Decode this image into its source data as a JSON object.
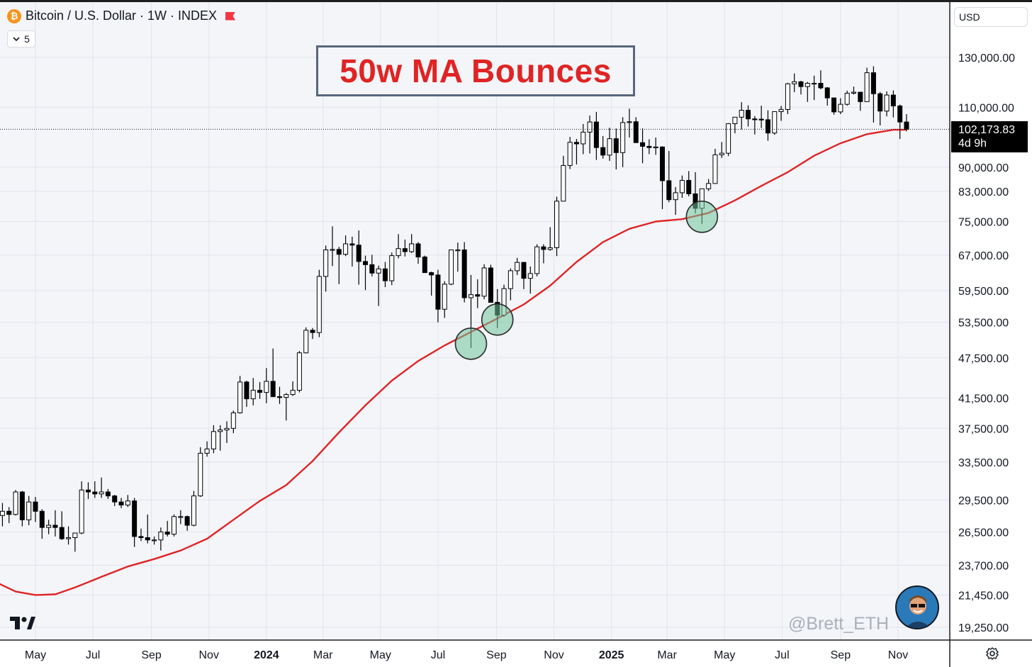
{
  "header": {
    "symbol_title": "Bitcoin / U.S. Dollar · 1W · INDEX",
    "coin_glyph": "₿",
    "collapse_count": "5",
    "currency": "USD"
  },
  "annotation": {
    "title": "50w MA Bounces"
  },
  "last_price": {
    "value": "102,173.83",
    "countdown": "4d 9h"
  },
  "watermark": "@Brett_ETH",
  "colors": {
    "ma": "#e02424",
    "candle_up": "#ffffff",
    "candle_down": "#000000",
    "circle_fill": "#6fc29a",
    "title": "#e02424",
    "background": "#f4f5f9"
  },
  "chart_data": {
    "type": "candlestick",
    "timeframe": "1W",
    "y_scale": "log",
    "y_ticks": [
      130000,
      110000,
      90000,
      83000,
      75000,
      67000,
      59500,
      53500,
      47500,
      41500,
      37500,
      33500,
      29500,
      26500,
      23700,
      21450,
      19250
    ],
    "y_tick_labels": [
      "130,000.00",
      "110,000.00",
      "90,000.00",
      "83,000.00",
      "75,000.00",
      "67,000.00",
      "59,500.00",
      "53,500.00",
      "47,500.00",
      "41,500.00",
      "37,500.00",
      "33,500.00",
      "29,500.00",
      "26,500.00",
      "23,700.00",
      "21,450.00",
      "19,250.00"
    ],
    "x_labels": [
      {
        "label": "May",
        "date": "2023-05-01",
        "bold": false
      },
      {
        "label": "Jul",
        "date": "2023-07-01",
        "bold": false
      },
      {
        "label": "Sep",
        "date": "2023-09-01",
        "bold": false
      },
      {
        "label": "Nov",
        "date": "2023-11-01",
        "bold": false
      },
      {
        "label": "2024",
        "date": "2024-01-01",
        "bold": true
      },
      {
        "label": "Mar",
        "date": "2024-03-01",
        "bold": false
      },
      {
        "label": "May",
        "date": "2024-05-01",
        "bold": false
      },
      {
        "label": "Jul",
        "date": "2024-07-01",
        "bold": false
      },
      {
        "label": "Sep",
        "date": "2024-09-01",
        "bold": false
      },
      {
        "label": "Nov",
        "date": "2024-11-01",
        "bold": false
      },
      {
        "label": "2025",
        "date": "2025-01-01",
        "bold": true
      },
      {
        "label": "Mar",
        "date": "2025-03-01",
        "bold": false
      },
      {
        "label": "May",
        "date": "2025-05-01",
        "bold": false
      },
      {
        "label": "Jul",
        "date": "2025-07-01",
        "bold": false
      },
      {
        "label": "Sep",
        "date": "2025-09-01",
        "bold": false
      },
      {
        "label": "Nov",
        "date": "2025-11-01",
        "bold": false
      }
    ],
    "ma_50w": [
      [
        "2023-03-20",
        22400
      ],
      [
        "2023-04-10",
        21700
      ],
      [
        "2023-05-01",
        21450
      ],
      [
        "2023-05-22",
        21500
      ],
      [
        "2023-06-12",
        22000
      ],
      [
        "2023-07-10",
        22800
      ],
      [
        "2023-08-07",
        23600
      ],
      [
        "2023-09-04",
        24200
      ],
      [
        "2023-10-02",
        24900
      ],
      [
        "2023-10-30",
        25900
      ],
      [
        "2023-11-27",
        27600
      ],
      [
        "2023-12-25",
        29400
      ],
      [
        "2024-01-22",
        31000
      ],
      [
        "2024-02-19",
        33600
      ],
      [
        "2024-03-18",
        37000
      ],
      [
        "2024-04-15",
        40500
      ],
      [
        "2024-05-13",
        44000
      ],
      [
        "2024-06-10",
        47000
      ],
      [
        "2024-07-08",
        49500
      ],
      [
        "2024-08-05",
        51800
      ],
      [
        "2024-09-02",
        54200
      ],
      [
        "2024-09-30",
        56800
      ],
      [
        "2024-10-28",
        60500
      ],
      [
        "2024-11-25",
        65500
      ],
      [
        "2024-12-23",
        70000
      ],
      [
        "2025-01-20",
        73200
      ],
      [
        "2025-02-17",
        75000
      ],
      [
        "2025-03-17",
        75600
      ],
      [
        "2025-04-14",
        77200
      ],
      [
        "2025-05-12",
        80500
      ],
      [
        "2025-06-09",
        84500
      ],
      [
        "2025-07-07",
        88500
      ],
      [
        "2025-08-04",
        93500
      ],
      [
        "2025-09-01",
        97500
      ],
      [
        "2025-09-29",
        100500
      ],
      [
        "2025-10-27",
        102000
      ],
      [
        "2025-11-10",
        102000
      ]
    ],
    "highlight_points": [
      {
        "date": "2024-08-05",
        "value": 49800
      },
      {
        "date": "2024-09-02",
        "value": 54000
      },
      {
        "date": "2025-04-07",
        "value": 76200
      }
    ],
    "candles": [
      [
        "2023-03-20",
        27500,
        28800,
        26800,
        28000
      ],
      [
        "2023-03-27",
        28000,
        29200,
        27000,
        28400
      ],
      [
        "2023-04-03",
        28400,
        28800,
        27300,
        28100
      ],
      [
        "2023-04-10",
        28100,
        30500,
        28000,
        30300
      ],
      [
        "2023-04-17",
        30300,
        30400,
        27000,
        27600
      ],
      [
        "2023-04-24",
        27600,
        29900,
        27100,
        29300
      ],
      [
        "2023-05-01",
        29300,
        29800,
        27400,
        28400
      ],
      [
        "2023-05-08",
        28400,
        28600,
        25900,
        26900
      ],
      [
        "2023-05-15",
        26900,
        27600,
        26300,
        27100
      ],
      [
        "2023-05-22",
        27100,
        28500,
        26100,
        26900
      ],
      [
        "2023-05-29",
        26900,
        28400,
        25800,
        25900
      ],
      [
        "2023-06-05",
        25900,
        27000,
        25400,
        26000
      ],
      [
        "2023-06-12",
        26000,
        26300,
        24800,
        26400
      ],
      [
        "2023-06-19",
        26400,
        31400,
        26300,
        30500
      ],
      [
        "2023-06-26",
        30500,
        31300,
        29600,
        30300
      ],
      [
        "2023-07-03",
        30300,
        31400,
        29700,
        30100
      ],
      [
        "2023-07-10",
        30100,
        31800,
        29700,
        30300
      ],
      [
        "2023-07-17",
        30300,
        30600,
        29600,
        29900
      ],
      [
        "2023-07-24",
        29900,
        30000,
        28900,
        29300
      ],
      [
        "2023-07-31",
        29300,
        29700,
        28700,
        29000
      ],
      [
        "2023-08-07",
        29000,
        30000,
        28800,
        29400
      ],
      [
        "2023-08-14",
        29400,
        29700,
        25200,
        26100
      ],
      [
        "2023-08-21",
        26100,
        26800,
        25700,
        26000
      ],
      [
        "2023-08-28",
        26000,
        28100,
        25500,
        25800
      ],
      [
        "2023-09-04",
        25800,
        26100,
        25400,
        25800
      ],
      [
        "2023-09-11",
        25800,
        26900,
        24900,
        26500
      ],
      [
        "2023-09-18",
        26500,
        27500,
        26100,
        26300
      ],
      [
        "2023-09-25",
        26300,
        28100,
        26100,
        27900
      ],
      [
        "2023-10-02",
        27900,
        28500,
        27200,
        27900
      ],
      [
        "2023-10-09",
        27900,
        28000,
        26600,
        27100
      ],
      [
        "2023-10-16",
        27100,
        30400,
        27000,
        29900
      ],
      [
        "2023-10-23",
        29900,
        35200,
        29800,
        34500
      ],
      [
        "2023-10-30",
        34500,
        35900,
        34100,
        35000
      ],
      [
        "2023-11-06",
        35000,
        37900,
        34500,
        37100
      ],
      [
        "2023-11-13",
        37100,
        37900,
        34800,
        37300
      ],
      [
        "2023-11-20",
        37300,
        38400,
        35700,
        37500
      ],
      [
        "2023-11-27",
        37500,
        39800,
        36900,
        39500
      ],
      [
        "2023-12-04",
        39500,
        44700,
        39400,
        43800
      ],
      [
        "2023-12-11",
        43800,
        44000,
        40300,
        41400
      ],
      [
        "2023-12-18",
        41400,
        44400,
        40500,
        42600
      ],
      [
        "2023-12-25",
        42600,
        43800,
        41400,
        42300
      ],
      [
        "2024-01-01",
        42300,
        45900,
        40800,
        43900
      ],
      [
        "2024-01-08",
        43900,
        49000,
        41800,
        41700
      ],
      [
        "2024-01-15",
        41700,
        43100,
        40700,
        41600
      ],
      [
        "2024-01-22",
        41600,
        42200,
        38500,
        42000
      ],
      [
        "2024-01-29",
        42000,
        43900,
        41800,
        42600
      ],
      [
        "2024-02-05",
        42600,
        48600,
        42300,
        48300
      ],
      [
        "2024-02-12",
        48300,
        52600,
        48200,
        52100
      ],
      [
        "2024-02-19",
        52100,
        52500,
        50600,
        51700
      ],
      [
        "2024-02-26",
        51700,
        63800,
        50900,
        62400
      ],
      [
        "2024-03-04",
        62400,
        69200,
        59300,
        68200
      ],
      [
        "2024-03-11",
        68200,
        73800,
        64600,
        68300
      ],
      [
        "2024-03-18",
        68300,
        68900,
        60800,
        67200
      ],
      [
        "2024-03-25",
        67200,
        71600,
        66800,
        69600
      ],
      [
        "2024-04-01",
        69600,
        71300,
        64500,
        69300
      ],
      [
        "2024-04-08",
        69300,
        72800,
        60700,
        65600
      ],
      [
        "2024-04-15",
        65600,
        66900,
        59600,
        64900
      ],
      [
        "2024-04-22",
        64900,
        67100,
        62400,
        63100
      ],
      [
        "2024-04-29",
        63100,
        64700,
        56500,
        64000
      ],
      [
        "2024-05-06",
        64000,
        65500,
        60200,
        61500
      ],
      [
        "2024-05-13",
        61500,
        67600,
        60600,
        66900
      ],
      [
        "2024-05-20",
        66900,
        71900,
        66300,
        68500
      ],
      [
        "2024-05-27",
        68500,
        70600,
        66700,
        67800
      ],
      [
        "2024-06-03",
        67800,
        71900,
        67500,
        69600
      ],
      [
        "2024-06-10",
        69600,
        70000,
        65100,
        66600
      ],
      [
        "2024-06-17",
        66600,
        66900,
        63400,
        63200
      ],
      [
        "2024-06-24",
        63200,
        63400,
        58500,
        62700
      ],
      [
        "2024-07-01",
        62700,
        63800,
        53500,
        55900
      ],
      [
        "2024-07-08",
        55900,
        61400,
        54300,
        60800
      ],
      [
        "2024-07-15",
        60800,
        68300,
        60600,
        68200
      ],
      [
        "2024-07-22",
        68200,
        69900,
        63400,
        68200
      ],
      [
        "2024-07-29",
        68200,
        70000,
        57200,
        58100
      ],
      [
        "2024-08-05",
        58100,
        62700,
        49100,
        58700
      ],
      [
        "2024-08-12",
        58700,
        61800,
        56100,
        58400
      ],
      [
        "2024-08-19",
        58400,
        65000,
        57800,
        64200
      ],
      [
        "2024-08-26",
        64200,
        64900,
        57200,
        57200
      ],
      [
        "2024-09-02",
        57200,
        59800,
        52500,
        54800
      ],
      [
        "2024-09-09",
        54800,
        60700,
        54500,
        59900
      ],
      [
        "2024-09-16",
        59900,
        64100,
        57600,
        63600
      ],
      [
        "2024-09-23",
        63600,
        66400,
        62700,
        65400
      ],
      [
        "2024-09-30",
        65400,
        65500,
        59800,
        62000
      ],
      [
        "2024-10-07",
        62000,
        64500,
        58900,
        63000
      ],
      [
        "2024-10-14",
        63000,
        69500,
        62400,
        68900
      ],
      [
        "2024-10-21",
        68900,
        69500,
        65200,
        68300
      ],
      [
        "2024-10-28",
        68300,
        73600,
        68000,
        68700
      ],
      [
        "2024-11-04",
        68700,
        81500,
        66800,
        80300
      ],
      [
        "2024-11-11",
        80300,
        93500,
        80200,
        90500
      ],
      [
        "2024-11-18",
        90500,
        99600,
        89400,
        97800
      ],
      [
        "2024-11-25",
        97800,
        98900,
        90800,
        97300
      ],
      [
        "2024-12-02",
        97300,
        104000,
        94000,
        101200
      ],
      [
        "2024-12-09",
        101200,
        107000,
        94200,
        104700
      ],
      [
        "2024-12-16",
        104700,
        108300,
        92200,
        96100
      ],
      [
        "2024-12-23",
        96100,
        99900,
        92600,
        93700
      ],
      [
        "2024-12-30",
        93700,
        102700,
        91900,
        99000
      ],
      [
        "2025-01-06",
        99000,
        102400,
        89300,
        94500
      ],
      [
        "2025-01-13",
        94500,
        106400,
        90000,
        104500
      ],
      [
        "2025-01-20",
        104500,
        109500,
        99400,
        104800
      ],
      [
        "2025-01-27",
        104800,
        106400,
        97800,
        97700
      ],
      [
        "2025-02-03",
        97700,
        102500,
        91200,
        96500
      ],
      [
        "2025-02-10",
        96500,
        98800,
        94000,
        96100
      ],
      [
        "2025-02-17",
        96100,
        99400,
        93800,
        96300
      ],
      [
        "2025-02-24",
        96300,
        96500,
        78200,
        86000
      ],
      [
        "2025-03-03",
        86000,
        95000,
        80000,
        80700
      ],
      [
        "2025-03-10",
        80700,
        84200,
        76700,
        82600
      ],
      [
        "2025-03-17",
        82600,
        87500,
        81200,
        86100
      ],
      [
        "2025-03-24",
        86100,
        88800,
        81600,
        82300
      ],
      [
        "2025-03-31",
        82300,
        88500,
        77100,
        78400
      ],
      [
        "2025-04-07",
        78400,
        83600,
        74400,
        83700
      ],
      [
        "2025-04-14",
        83700,
        86500,
        83100,
        85200
      ],
      [
        "2025-04-21",
        85200,
        95700,
        85100,
        93800
      ],
      [
        "2025-04-28",
        93800,
        97900,
        92800,
        94300
      ],
      [
        "2025-05-05",
        94300,
        104300,
        93400,
        104100
      ],
      [
        "2025-05-12",
        104100,
        105800,
        100800,
        106400
      ],
      [
        "2025-05-19",
        106400,
        111900,
        102100,
        108900
      ],
      [
        "2025-05-26",
        108900,
        110700,
        103100,
        105800
      ],
      [
        "2025-06-02",
        105800,
        106800,
        100400,
        105700
      ],
      [
        "2025-06-09",
        105700,
        110600,
        102600,
        105500
      ],
      [
        "2025-06-16",
        105500,
        108900,
        98300,
        100900
      ],
      [
        "2025-06-23",
        100900,
        108500,
        100300,
        108400
      ],
      [
        "2025-06-30",
        108400,
        110500,
        105100,
        109200
      ],
      [
        "2025-07-07",
        109200,
        119400,
        107500,
        119000
      ],
      [
        "2025-07-14",
        119000,
        123200,
        115700,
        119800
      ],
      [
        "2025-07-21",
        119800,
        120200,
        114800,
        117900
      ],
      [
        "2025-07-28",
        117900,
        119800,
        112000,
        119200
      ],
      [
        "2025-08-04",
        119200,
        122300,
        112700,
        119200
      ],
      [
        "2025-08-11",
        119200,
        124500,
        116800,
        117400
      ],
      [
        "2025-08-18",
        117400,
        117700,
        110600,
        113500
      ],
      [
        "2025-08-25",
        113500,
        113600,
        107300,
        108300
      ],
      [
        "2025-09-01",
        108300,
        113400,
        107500,
        111100
      ],
      [
        "2025-09-08",
        111100,
        116300,
        110600,
        115300
      ],
      [
        "2025-09-15",
        115300,
        117900,
        114800,
        115700
      ],
      [
        "2025-09-22",
        115700,
        115800,
        108700,
        112100
      ],
      [
        "2025-09-29",
        112100,
        125600,
        112000,
        123500
      ],
      [
        "2025-10-06",
        123500,
        126200,
        104500,
        115100
      ],
      [
        "2025-10-13",
        115100,
        115800,
        103500,
        108600
      ],
      [
        "2025-10-20",
        108600,
        116000,
        106700,
        114600
      ],
      [
        "2025-10-27",
        114600,
        116400,
        106300,
        110500
      ],
      [
        "2025-11-03",
        110500,
        111000,
        98900,
        104700
      ],
      [
        "2025-11-10",
        104700,
        107500,
        101500,
        102174
      ]
    ]
  }
}
